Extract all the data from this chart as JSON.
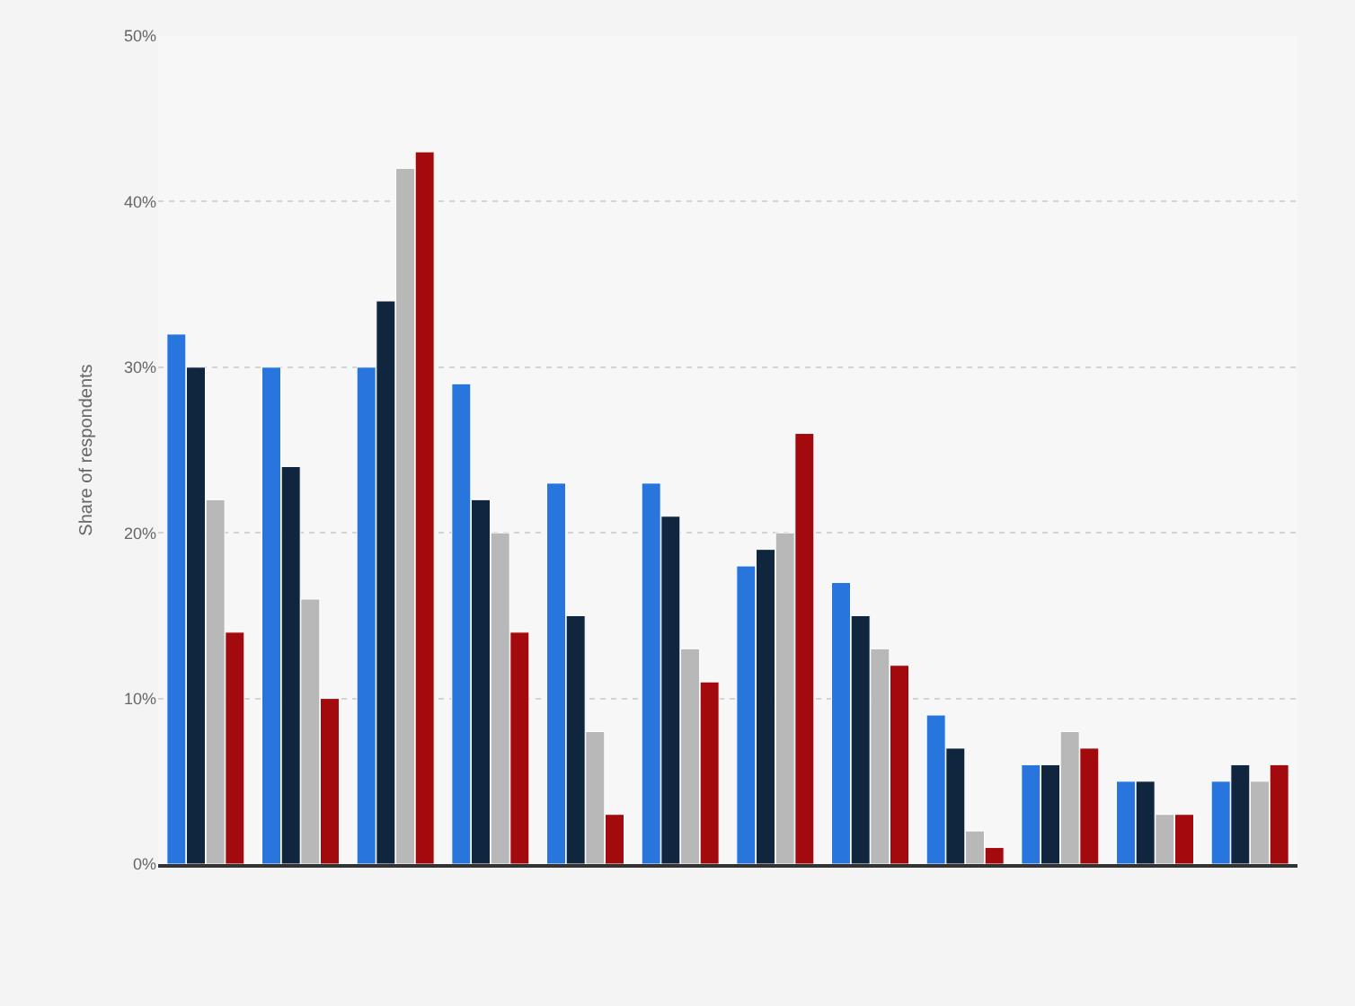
{
  "chart_data": {
    "type": "bar",
    "ylabel": "Share of respondents",
    "categories": [
      null,
      null,
      null,
      null,
      null,
      null,
      null,
      null,
      null,
      null,
      null,
      null
    ],
    "series": [
      {
        "color": "#2876dd",
        "values": [
          32,
          30,
          30,
          29,
          23,
          23,
          18,
          17,
          9,
          6,
          5,
          5
        ]
      },
      {
        "color": "#10263e",
        "values": [
          30,
          24,
          34,
          22,
          15,
          21,
          19,
          15,
          7,
          6,
          5,
          6
        ]
      },
      {
        "color": "#b8b8b8",
        "values": [
          22,
          16,
          42,
          20,
          8,
          13,
          20,
          13,
          2,
          8,
          3,
          5
        ]
      },
      {
        "color": "#a30a0e",
        "values": [
          14,
          10,
          43,
          14,
          3,
          11,
          26,
          12,
          1,
          7,
          3,
          6
        ]
      }
    ],
    "ylim": [
      0,
      50
    ],
    "yticks": [
      {
        "value": 0,
        "label": "0%"
      },
      {
        "value": 10,
        "label": "10%"
      },
      {
        "value": 20,
        "label": "20%"
      },
      {
        "value": 30,
        "label": "30%"
      },
      {
        "value": 40,
        "label": "40%"
      },
      {
        "value": 50,
        "label": "50%"
      }
    ],
    "grid": "y",
    "tick_labels": "y"
  }
}
